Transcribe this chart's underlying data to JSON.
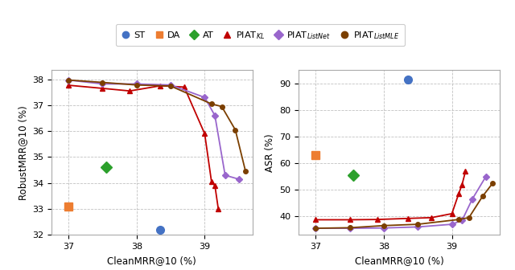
{
  "left_plot": {
    "xlabel": "CleanMRR@10 (%)",
    "ylabel": "RobustMRR@10 (%)",
    "xlim": [
      36.75,
      39.7
    ],
    "ylim": [
      32.0,
      38.35
    ],
    "xticks": [
      37,
      38,
      39
    ],
    "yticks": [
      32,
      33,
      34,
      35,
      36,
      37,
      38
    ],
    "series": {
      "ST": {
        "x": [
          38.35
        ],
        "y": [
          32.2
        ],
        "color": "#4472C4",
        "marker": "o",
        "linestyle": "none",
        "markersize": 7
      },
      "DA": {
        "x": [
          37.0
        ],
        "y": [
          33.1
        ],
        "color": "#ED7D31",
        "marker": "s",
        "linestyle": "none",
        "markersize": 7
      },
      "AT": {
        "x": [
          37.55
        ],
        "y": [
          34.6
        ],
        "color": "#2CA02C",
        "marker": "D",
        "linestyle": "none",
        "markersize": 7
      },
      "PIAT_KL": {
        "x": [
          37.0,
          37.5,
          37.9,
          38.35,
          38.7,
          39.0,
          39.1,
          39.15,
          39.2
        ],
        "y": [
          37.77,
          37.65,
          37.55,
          37.75,
          37.7,
          35.9,
          34.05,
          33.9,
          33.0
        ],
        "color": "#C00000",
        "marker": "^",
        "linestyle": "-",
        "markersize": 4
      },
      "PIAT_ListNet": {
        "x": [
          37.0,
          37.5,
          38.0,
          38.5,
          39.0,
          39.15,
          39.3,
          39.5
        ],
        "y": [
          37.97,
          37.82,
          37.82,
          37.78,
          37.3,
          36.6,
          34.3,
          34.15
        ],
        "color": "#9966CC",
        "marker": "D",
        "linestyle": "-",
        "markersize": 4
      },
      "PIAT_ListMLE": {
        "x": [
          37.0,
          37.5,
          38.0,
          38.5,
          39.1,
          39.25,
          39.45,
          39.6
        ],
        "y": [
          37.97,
          37.88,
          37.78,
          37.74,
          37.05,
          36.95,
          36.05,
          34.45
        ],
        "color": "#7B3F00",
        "marker": "o",
        "linestyle": "-",
        "markersize": 4
      }
    }
  },
  "right_plot": {
    "xlabel": "CleanMRR@10 (%)",
    "ylabel": "ASR (%)",
    "xlim": [
      36.75,
      39.7
    ],
    "ylim": [
      33,
      95
    ],
    "xticks": [
      37,
      38,
      39
    ],
    "yticks": [
      40,
      50,
      60,
      70,
      80,
      90
    ],
    "series": {
      "ST": {
        "x": [
          38.35
        ],
        "y": [
          91.5
        ],
        "color": "#4472C4",
        "marker": "o",
        "linestyle": "none",
        "markersize": 7
      },
      "DA": {
        "x": [
          37.0
        ],
        "y": [
          63.0
        ],
        "color": "#ED7D31",
        "marker": "s",
        "linestyle": "none",
        "markersize": 7
      },
      "AT": {
        "x": [
          37.55
        ],
        "y": [
          55.5
        ],
        "color": "#2CA02C",
        "marker": "D",
        "linestyle": "none",
        "markersize": 7
      },
      "PIAT_KL": {
        "x": [
          37.0,
          37.5,
          37.9,
          38.35,
          38.7,
          39.0,
          39.1,
          39.15,
          39.2
        ],
        "y": [
          38.7,
          38.7,
          38.8,
          39.2,
          39.5,
          41.0,
          48.5,
          52.0,
          57.0
        ],
        "color": "#C00000",
        "marker": "^",
        "linestyle": "-",
        "markersize": 4
      },
      "PIAT_ListNet": {
        "x": [
          37.0,
          37.5,
          38.0,
          38.5,
          39.0,
          39.15,
          39.3,
          39.5
        ],
        "y": [
          35.5,
          35.5,
          35.6,
          36.0,
          37.0,
          38.5,
          46.5,
          55.0
        ],
        "color": "#9966CC",
        "marker": "D",
        "linestyle": "-",
        "markersize": 4
      },
      "PIAT_ListMLE": {
        "x": [
          37.0,
          37.5,
          38.0,
          38.5,
          39.1,
          39.25,
          39.45,
          39.6
        ],
        "y": [
          35.5,
          35.7,
          36.5,
          37.0,
          38.8,
          39.5,
          47.5,
          52.5
        ],
        "color": "#7B3F00",
        "marker": "o",
        "linestyle": "-",
        "markersize": 4
      }
    }
  },
  "legend": {
    "ST": {
      "color": "#4472C4",
      "marker": "o"
    },
    "DA": {
      "color": "#ED7D31",
      "marker": "s"
    },
    "AT": {
      "color": "#2CA02C",
      "marker": "D"
    },
    "PIAT_KL": {
      "color": "#C00000",
      "marker": "^"
    },
    "PIAT_ListNet": {
      "color": "#9966CC",
      "marker": "D"
    },
    "PIAT_ListMLE": {
      "color": "#7B3F00",
      "marker": "o"
    }
  },
  "background_color": "#FFFFFF",
  "grid_color": "#BBBBBB",
  "figure_size": [
    6.4,
    3.36
  ],
  "dpi": 100
}
